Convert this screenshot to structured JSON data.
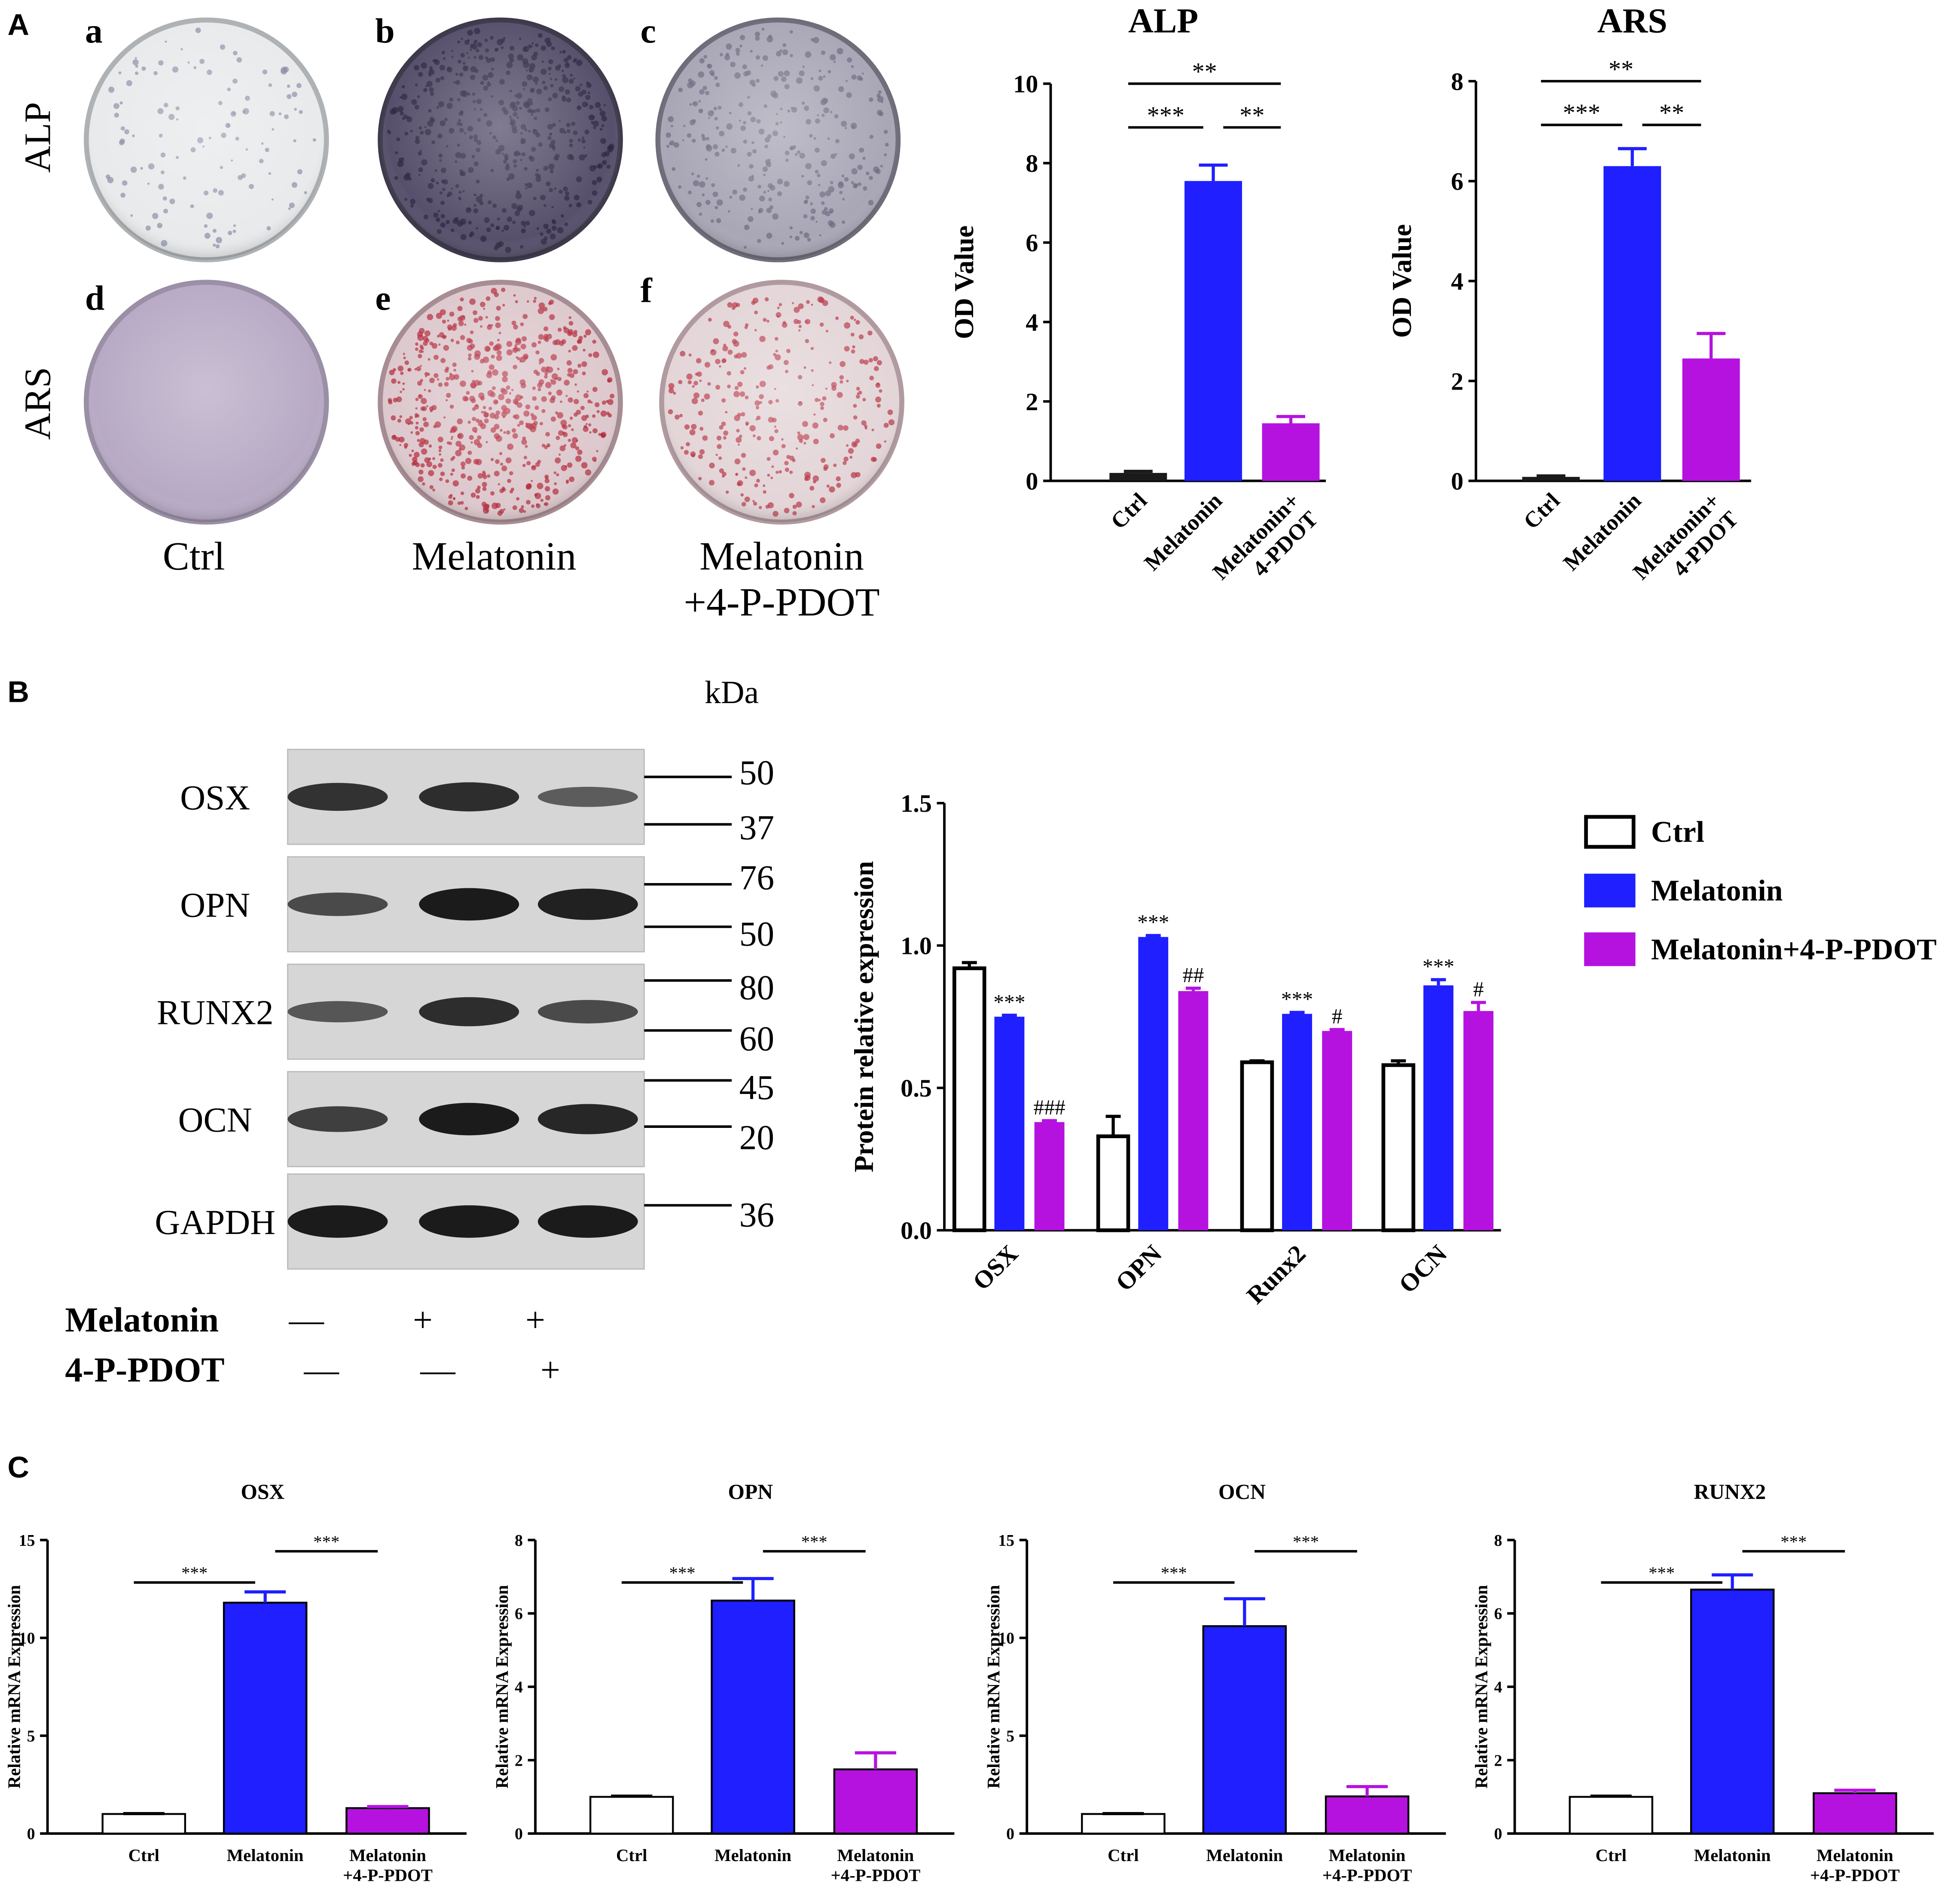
{
  "panel_labels": [
    "A",
    "B",
    "C"
  ],
  "staining": {
    "row_labels": [
      "ALP",
      "ARS"
    ],
    "dish_labels": [
      "a",
      "b",
      "c",
      "d",
      "e",
      "f"
    ],
    "group_labels": [
      "Ctrl",
      "Melatonin",
      "Melatonin\n+4-P-PDOT"
    ]
  },
  "western_blot": {
    "unit": "kDa",
    "proteins": [
      {
        "name": "OSX",
        "markers": [
          "50",
          "37"
        ]
      },
      {
        "name": "OPN",
        "markers": [
          "76",
          "50"
        ]
      },
      {
        "name": "RUNX2",
        "markers": [
          "80",
          "60"
        ]
      },
      {
        "name": "OCN",
        "markers": [
          "45",
          "20"
        ]
      },
      {
        "name": "GAPDH",
        "markers": [
          "36"
        ]
      }
    ],
    "treatments": [
      {
        "name": "Melatonin",
        "marks": [
          "—",
          "+",
          "+"
        ]
      },
      {
        "name": "4-P-PDOT",
        "marks": [
          "—",
          "—",
          "+"
        ]
      }
    ]
  },
  "chart_data": [
    {
      "type": "bar",
      "title": "ALP",
      "y_label": "OD Value",
      "categories": [
        "Ctrl",
        "Melatonin",
        "Melatonin+\n4-PDOT"
      ],
      "values": [
        0.2,
        7.55,
        1.45
      ],
      "errors": [
        0.04,
        0.4,
        0.17
      ],
      "colors": [
        "#1a1a1a",
        "#1f1fff",
        "#b512e0"
      ],
      "ylim": [
        0,
        10
      ],
      "yticks": [
        0,
        2,
        4,
        6,
        8,
        10
      ],
      "annotations": [
        {
          "text": "***",
          "between": [
            "Ctrl",
            "Melatonin"
          ]
        },
        {
          "text": "**",
          "between": [
            "Melatonin",
            "Melatonin+\n4-PDOT"
          ]
        },
        {
          "text": "**",
          "between": [
            "Ctrl",
            "Melatonin+\n4-PDOT"
          ]
        }
      ]
    },
    {
      "type": "bar",
      "title": "ARS",
      "y_label": "OD Value",
      "categories": [
        "Ctrl",
        "Melatonin",
        "Melatonin+\n4-PDOT"
      ],
      "values": [
        0.08,
        6.3,
        2.45
      ],
      "errors": [
        0.02,
        0.35,
        0.5
      ],
      "colors": [
        "#1a1a1a",
        "#1f1fff",
        "#b512e0"
      ],
      "ylim": [
        0,
        8
      ],
      "yticks": [
        0,
        2,
        4,
        6,
        8
      ],
      "annotations": [
        {
          "text": "***",
          "between": [
            "Ctrl",
            "Melatonin"
          ]
        },
        {
          "text": "**",
          "between": [
            "Melatonin",
            "Melatonin+\n4-PDOT"
          ]
        },
        {
          "text": "**",
          "between": [
            "Ctrl",
            "Melatonin+\n4-PDOT"
          ]
        }
      ]
    },
    {
      "type": "grouped_bar",
      "y_label": "Protein relative expression",
      "categories": [
        "OSX",
        "OPN",
        "Runx2",
        "OCN"
      ],
      "series": [
        {
          "name": "Ctrl",
          "color": "#ffffff",
          "edgecolor": "#000000",
          "values": [
            0.92,
            0.33,
            0.59,
            0.58
          ],
          "errors": [
            0.02,
            0.07,
            0.005,
            0.015
          ]
        },
        {
          "name": "Melatonin",
          "color": "#1f1fff",
          "values": [
            0.75,
            1.03,
            0.76,
            0.86
          ],
          "errors": [
            0.005,
            0.005,
            0.005,
            0.02
          ],
          "value_annotations": [
            "***",
            "***",
            "***",
            "***"
          ]
        },
        {
          "name": "Melatonin+4-P-PDOT",
          "color": "#b512e0",
          "values": [
            0.38,
            0.84,
            0.7,
            0.77
          ],
          "errors": [
            0.005,
            0.01,
            0.005,
            0.03
          ],
          "value_annotations": [
            "###",
            "##",
            "#",
            "#"
          ]
        }
      ],
      "ylim": [
        0,
        1.5
      ],
      "yticks": [
        {
          "value": 0,
          "label": "0.0"
        },
        {
          "value": 0.5,
          "label": "0.5"
        },
        {
          "value": 1,
          "label": "1.0"
        },
        {
          "value": 1.5,
          "label": "1.5"
        }
      ],
      "legend": "right"
    },
    {
      "type": "bar",
      "title": "OSX",
      "y_label": "Relative mRNA Expression",
      "categories": [
        "Ctrl",
        "Melatonin",
        "Melatonin\n+4-P-PDOT"
      ],
      "values": [
        1.0,
        11.8,
        1.3
      ],
      "errors": [
        0.02,
        0.55,
        0.08
      ],
      "colors": [
        "#ffffff",
        "#1f1fff",
        "#b512e0"
      ],
      "edgecolor": "#000000",
      "ylim": [
        0,
        15
      ],
      "yticks": [
        0,
        5,
        10,
        15
      ],
      "annotations": [
        {
          "text": "***",
          "between": [
            "Ctrl",
            "Melatonin"
          ]
        },
        {
          "text": "***",
          "between": [
            "Melatonin",
            "Melatonin\n+4-P-PDOT"
          ]
        }
      ]
    },
    {
      "type": "bar",
      "title": "OPN",
      "y_label": "Relative mRNA Expression",
      "categories": [
        "Ctrl",
        "Melatonin",
        "Melatonin\n+4-P-PDOT"
      ],
      "values": [
        1.0,
        6.35,
        1.75
      ],
      "errors": [
        0.02,
        0.6,
        0.45
      ],
      "colors": [
        "#ffffff",
        "#1f1fff",
        "#b512e0"
      ],
      "edgecolor": "#000000",
      "ylim": [
        0,
        8
      ],
      "yticks": [
        0,
        2,
        4,
        6,
        8
      ],
      "annotations": [
        {
          "text": "***",
          "between": [
            "Ctrl",
            "Melatonin"
          ]
        },
        {
          "text": "***",
          "between": [
            "Melatonin",
            "Melatonin\n+4-P-PDOT"
          ]
        }
      ]
    },
    {
      "type": "bar",
      "title": "OCN",
      "y_label": "Relative mRNA Expression",
      "categories": [
        "Ctrl",
        "Melatonin",
        "Melatonin\n+4-P-PDOT"
      ],
      "values": [
        1.0,
        10.6,
        1.9
      ],
      "errors": [
        0.02,
        1.4,
        0.5
      ],
      "colors": [
        "#ffffff",
        "#1f1fff",
        "#b512e0"
      ],
      "edgecolor": "#000000",
      "ylim": [
        0,
        15
      ],
      "yticks": [
        0,
        5,
        10,
        15
      ],
      "annotations": [
        {
          "text": "***",
          "between": [
            "Ctrl",
            "Melatonin"
          ]
        },
        {
          "text": "***",
          "between": [
            "Melatonin",
            "Melatonin\n+4-P-PDOT"
          ]
        }
      ]
    },
    {
      "type": "bar",
      "title": "RUNX2",
      "y_label": "Relative mRNA Expression",
      "categories": [
        "Ctrl",
        "Melatonin",
        "Melatonin\n+4-P-PDOT"
      ],
      "values": [
        1.0,
        6.65,
        1.1
      ],
      "errors": [
        0.02,
        0.4,
        0.08
      ],
      "colors": [
        "#ffffff",
        "#1f1fff",
        "#b512e0"
      ],
      "edgecolor": "#000000",
      "ylim": [
        0,
        8
      ],
      "yticks": [
        0,
        2,
        4,
        6,
        8
      ],
      "annotations": [
        {
          "text": "***",
          "between": [
            "Ctrl",
            "Melatonin"
          ]
        },
        {
          "text": "***",
          "between": [
            "Melatonin",
            "Melatonin\n+4-P-PDOT"
          ]
        }
      ]
    }
  ]
}
